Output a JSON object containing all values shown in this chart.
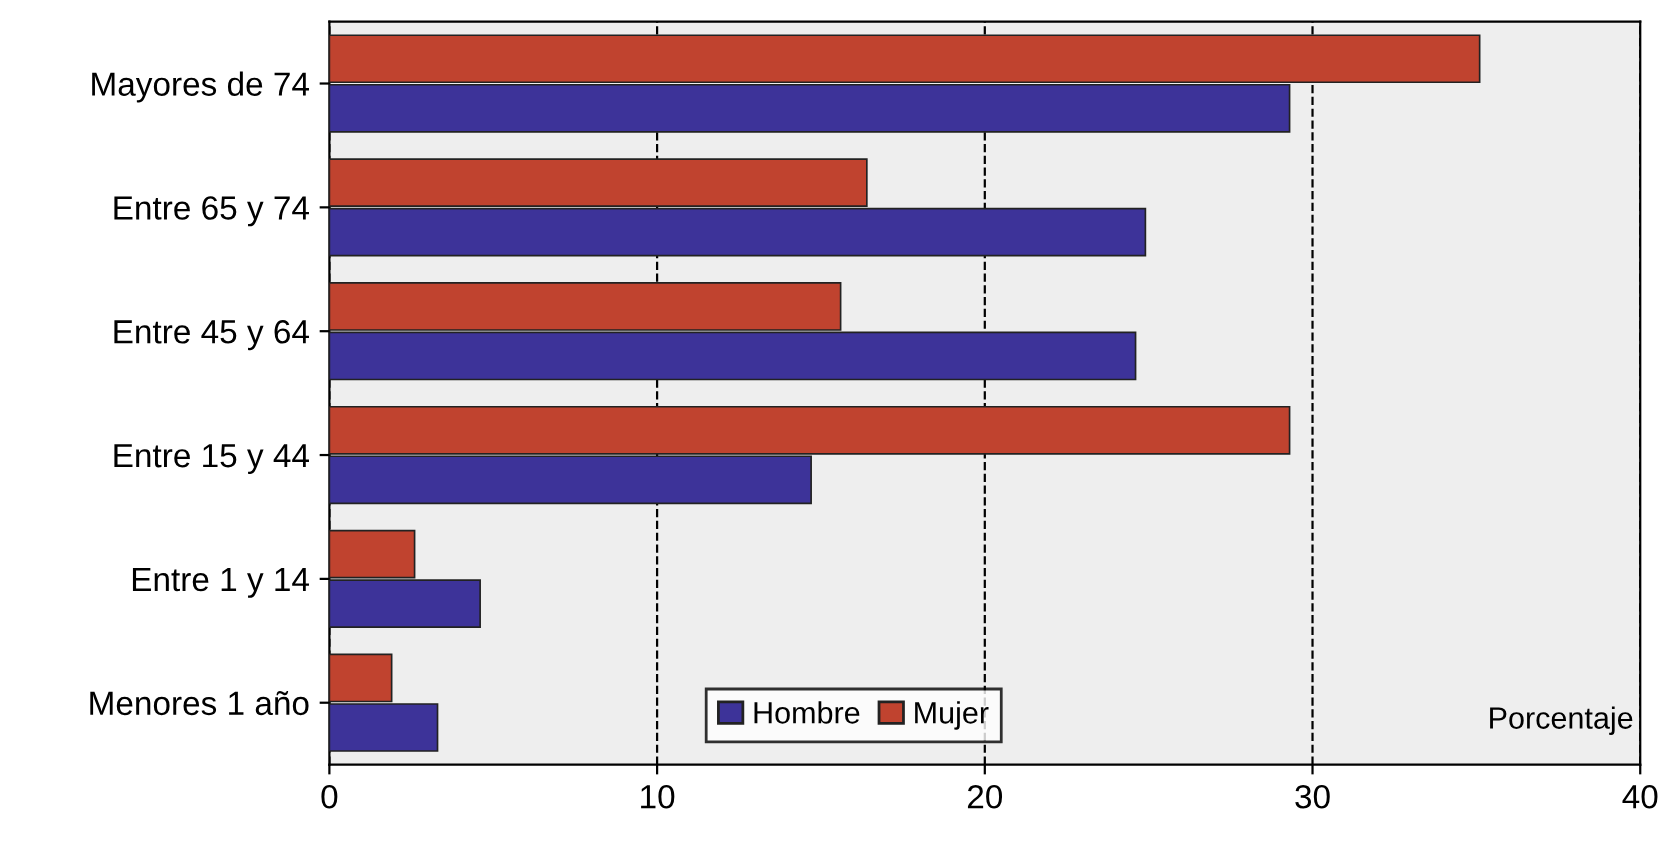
{
  "chart_data": {
    "type": "bar",
    "orientation": "horizontal",
    "xlabel": "Porcentaje",
    "categories": [
      "Mayores de 74",
      "Entre 65 y 74",
      "Entre 45 y 64",
      "Entre 15 y 44",
      "Entre 1 y 14",
      "Menores 1 año"
    ],
    "series": [
      {
        "name": "Hombre",
        "color": "#3d3399",
        "values": [
          29.3,
          24.9,
          24.6,
          14.7,
          4.6,
          3.3
        ]
      },
      {
        "name": "Mujer",
        "color": "#c0432f",
        "values": [
          35.1,
          16.4,
          15.6,
          29.3,
          2.6,
          1.9
        ]
      }
    ],
    "xlim": [
      0,
      40
    ],
    "xticks": [
      0,
      10,
      20,
      30,
      40
    ],
    "grid": "x",
    "legend": "bottom"
  }
}
